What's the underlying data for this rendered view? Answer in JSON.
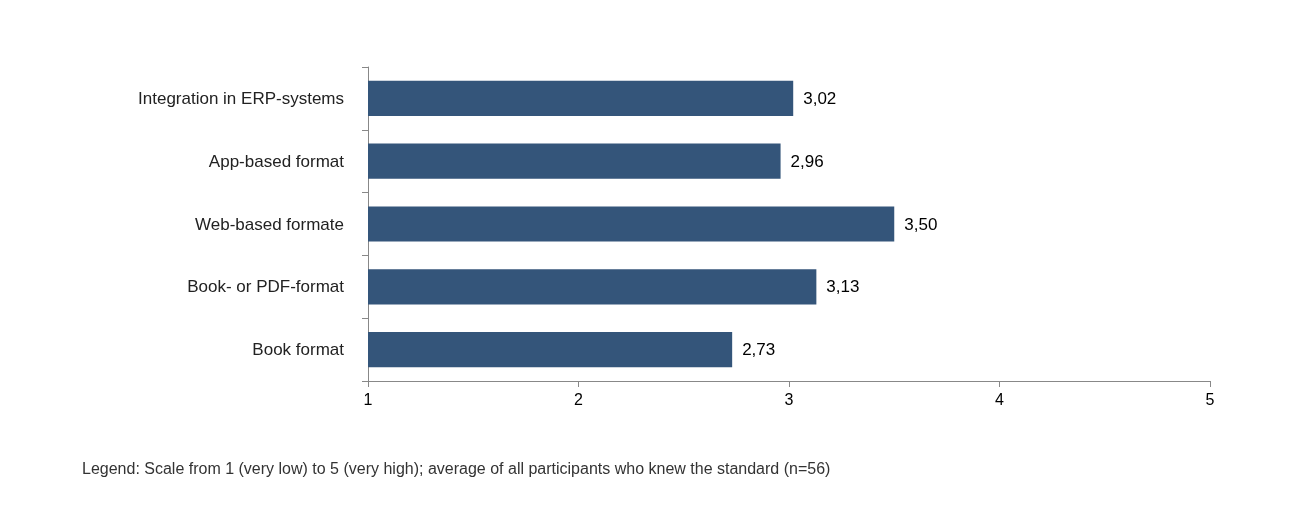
{
  "chart_data": {
    "type": "bar",
    "orientation": "horizontal",
    "categories": [
      "Integration in ERP-systems",
      "App-based format",
      "Web-based formate",
      "Book- or PDF-format",
      "Book format"
    ],
    "values": [
      3.02,
      2.96,
      3.5,
      3.13,
      2.73
    ],
    "value_labels": [
      "3,02",
      "2,96",
      "3,50",
      "3,13",
      "2,73"
    ],
    "color": "#34557a",
    "xlim": [
      1,
      5
    ],
    "xticks": [
      1,
      2,
      3,
      4,
      5
    ],
    "grid": false,
    "annotations": [
      "Legend: Scale from 1 (very low) to 5 (very high); average of all participants who knew the standard (n=56)"
    ]
  }
}
